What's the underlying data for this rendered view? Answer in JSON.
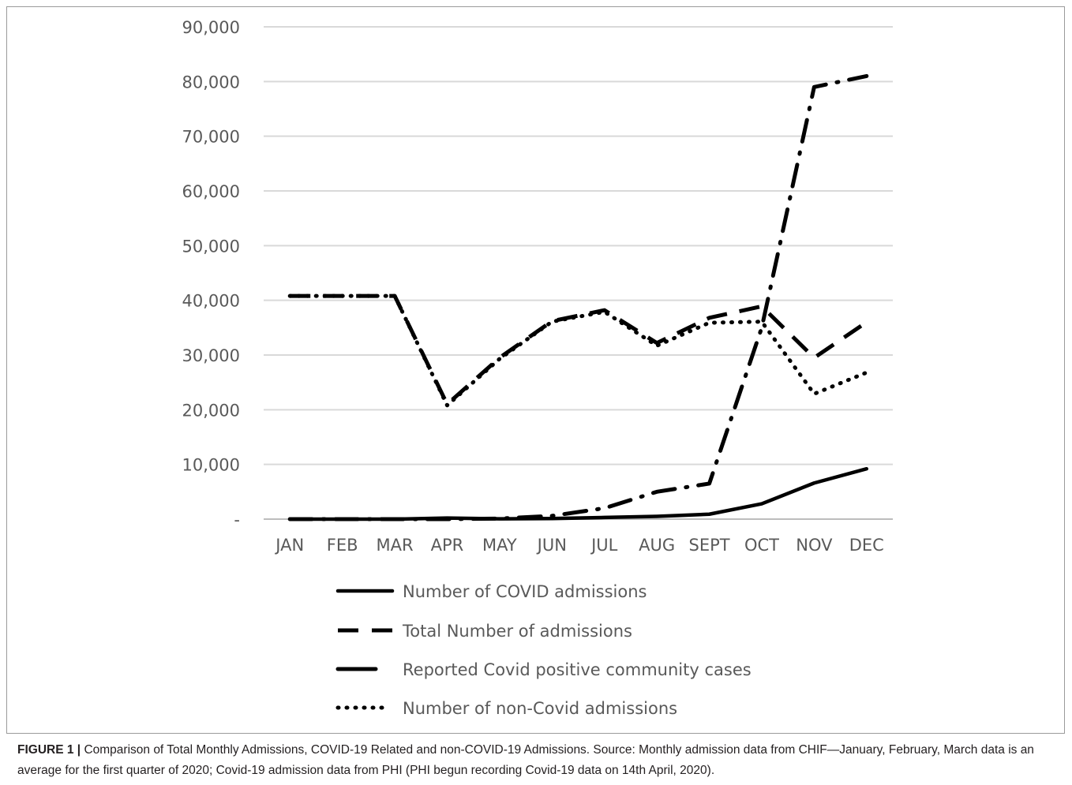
{
  "chart_data": {
    "type": "line",
    "categories": [
      "JAN",
      "FEB",
      "MAR",
      "APR",
      "MAY",
      "JUN",
      "JUL",
      "AUG",
      "SEPT",
      "OCT",
      "NOV",
      "DEC"
    ],
    "y_ticks": [
      "-",
      "10,000",
      "20,000",
      "30,000",
      "40,000",
      "50,000",
      "60,000",
      "70,000",
      "80,000",
      "90,000"
    ],
    "ylim": [
      0,
      90000
    ],
    "grid": true,
    "legend_position": "bottom",
    "series": [
      {
        "name": "Number of COVID  admissions",
        "style": "solid",
        "values": [
          0,
          0,
          0,
          200,
          50,
          100,
          300,
          500,
          900,
          2800,
          6600,
          9200
        ]
      },
      {
        "name": "Total  Number of admissions",
        "style": "dashed",
        "values": [
          40800,
          40800,
          40800,
          21000,
          29500,
          36200,
          38200,
          32200,
          36800,
          38900,
          29500,
          36000
        ]
      },
      {
        "name": "Reported Covid positive community cases",
        "style": "dashdot",
        "values": [
          0,
          0,
          0,
          0,
          100,
          600,
          2000,
          5000,
          6500,
          35000,
          79000,
          81000
        ]
      },
      {
        "name": "Number of non-Covid admissions",
        "style": "dotted",
        "values": [
          40800,
          40800,
          40800,
          20800,
          29300,
          36100,
          37900,
          31700,
          35900,
          36100,
          22900,
          26800
        ]
      }
    ],
    "color": "#000000"
  },
  "caption": {
    "label": "FIGURE 1 |",
    "text": " Comparison of Total Monthly Admissions, COVID-19 Related and non-COVID-19 Admissions. Source: Monthly admission data from CHIF—January, February, March data is an average for the first quarter of 2020; Covid-19 admission data from PHI (PHI begun recording Covid-19 data on 14th April, 2020)."
  }
}
